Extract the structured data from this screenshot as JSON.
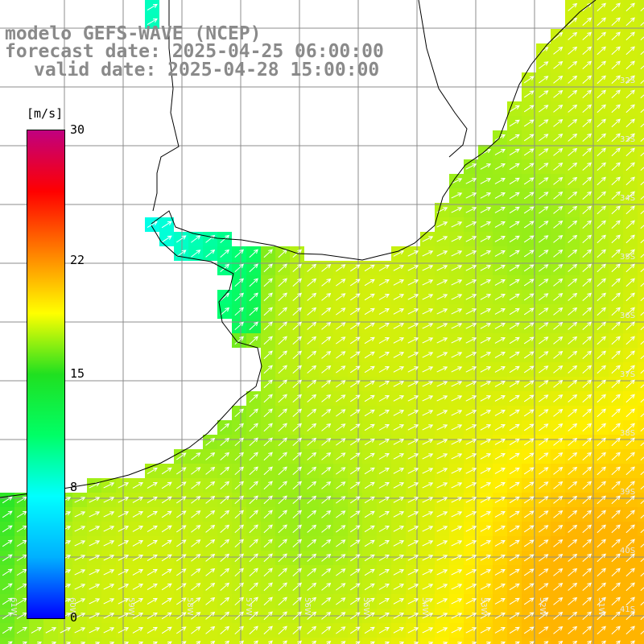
{
  "title": {
    "line1": "modelo GEFS-WAVE (NCEP)",
    "line2": "forecast date: 2025-04-25 06:00:00",
    "line3": "valid date: 2025-04-28 15:00:00"
  },
  "colorbar": {
    "units": "[m/s]",
    "ticks": [
      {
        "label": "30",
        "value": 30
      },
      {
        "label": "22",
        "value": 22
      },
      {
        "label": "15",
        "value": 15
      },
      {
        "label": "8",
        "value": 8
      },
      {
        "label": "0",
        "value": 0
      }
    ],
    "colors": [
      "#0000ff",
      "#00b0ff",
      "#00ffff",
      "#00ff66",
      "#20e020",
      "#ffff00",
      "#ff8000",
      "#ff0000",
      "#c00080"
    ]
  },
  "map": {
    "land_color": "#ffffff",
    "grid_color": "#8c8c8c",
    "arrow_color": "#ffffff",
    "lat_labels": [
      "32S",
      "33S",
      "34S",
      "35S",
      "36S",
      "37S",
      "38S",
      "39S",
      "40S",
      "41S"
    ],
    "lon_labels": [
      "61W",
      "60W",
      "59W",
      "58W",
      "57W",
      "56W",
      "55W",
      "54W",
      "53W",
      "52W",
      "51W"
    ]
  }
}
